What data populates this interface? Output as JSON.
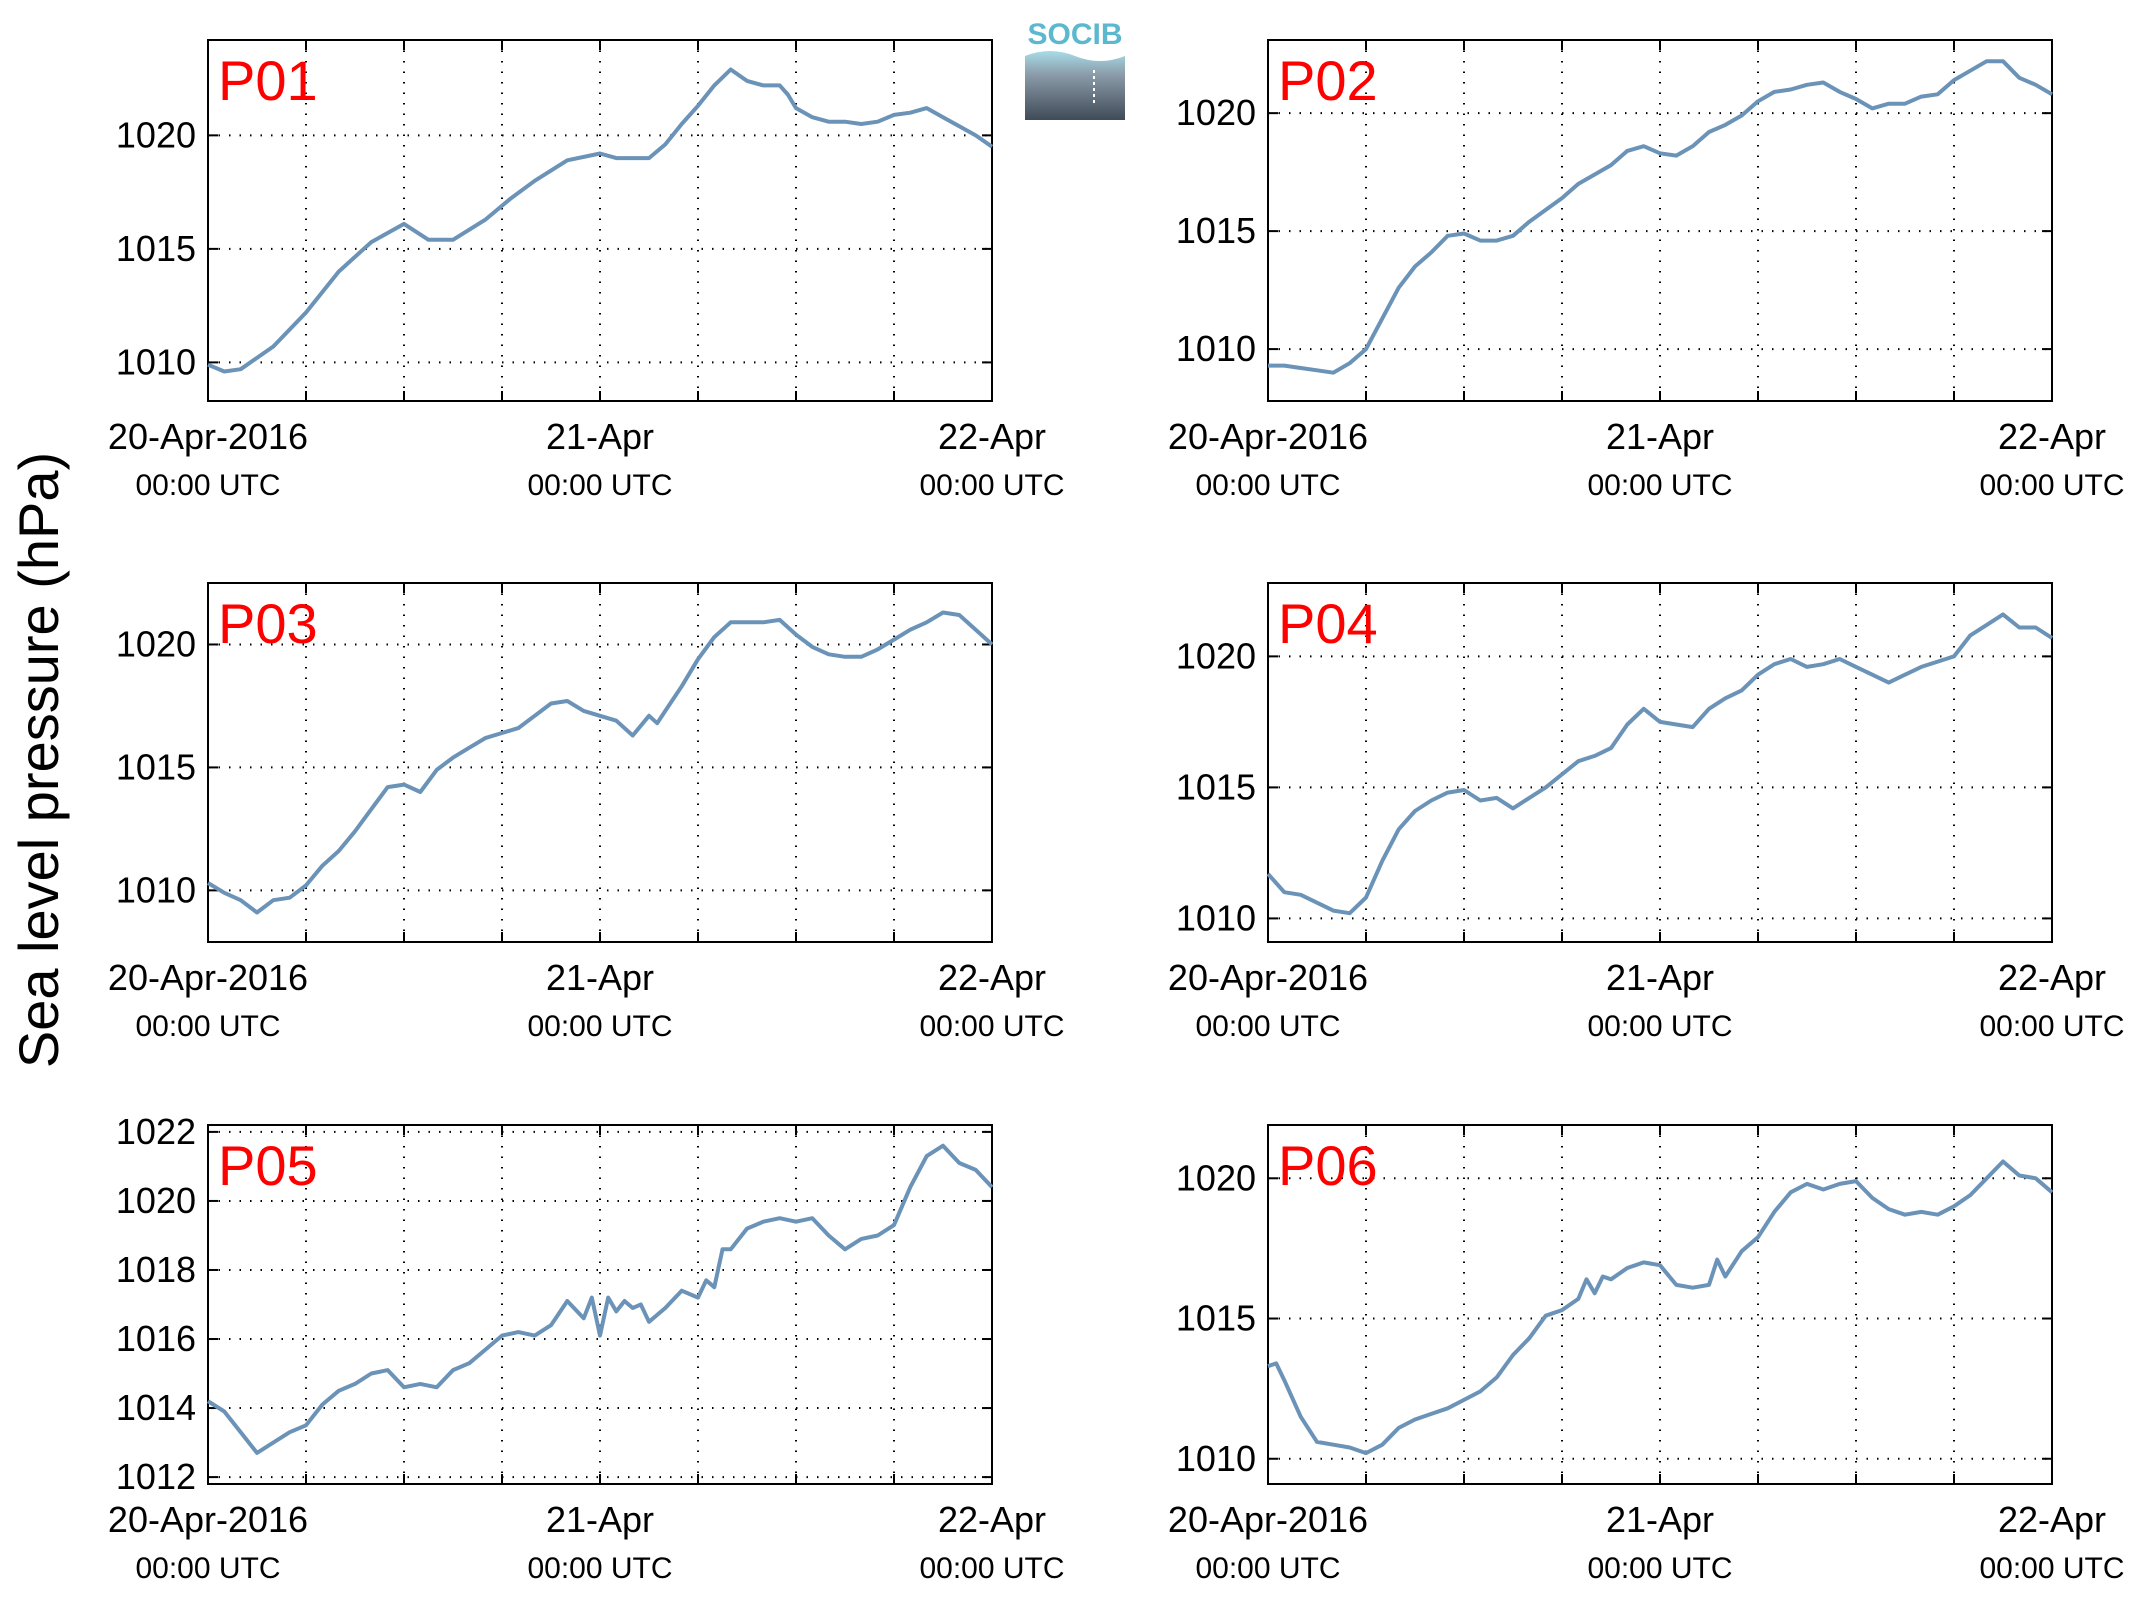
{
  "figure": {
    "ylabel": "Sea level pressure (hPa)",
    "logo_text": "SOCIB",
    "line_color": "#6b93b8",
    "label_color": "#ff0000"
  },
  "chart_data": [
    {
      "type": "line",
      "title": "P01",
      "x_unit": "hours since 20-Apr-2016 00:00 UTC",
      "xlim": [
        0,
        48
      ],
      "ylim": [
        1008.3,
        1024.2
      ],
      "yticks": [
        1010,
        1015,
        1020
      ],
      "xticks": [
        0,
        24,
        48
      ],
      "xtick_labels": [
        [
          "20-Apr-2016",
          "00:00 UTC"
        ],
        [
          "21-Apr",
          "00:00 UTC"
        ],
        [
          "22-Apr",
          "00:00 UTC"
        ]
      ],
      "grid": true,
      "x": [
        0,
        1,
        2,
        4,
        6,
        8,
        10,
        12,
        13.5,
        15,
        17,
        18.5,
        20,
        22,
        24,
        25,
        26,
        27,
        28,
        29,
        30,
        31,
        32,
        33,
        34,
        35,
        35.5,
        36,
        37,
        38,
        39,
        40,
        41,
        42,
        43,
        44,
        45,
        46,
        47,
        48
      ],
      "y": [
        1009.9,
        1009.6,
        1009.7,
        1010.7,
        1012.2,
        1014.0,
        1015.3,
        1016.1,
        1015.4,
        1015.4,
        1016.3,
        1017.2,
        1018.0,
        1018.9,
        1019.2,
        1019.0,
        1019.0,
        1019.0,
        1019.6,
        1020.5,
        1021.3,
        1022.2,
        1022.9,
        1022.4,
        1022.2,
        1022.2,
        1021.8,
        1021.2,
        1020.8,
        1020.6,
        1020.6,
        1020.5,
        1020.6,
        1020.9,
        1021.0,
        1021.2,
        1020.8,
        1020.4,
        1020.0,
        1019.5
      ]
    },
    {
      "type": "line",
      "title": "P02",
      "x_unit": "hours since 20-Apr-2016 00:00 UTC",
      "xlim": [
        0,
        48
      ],
      "ylim": [
        1007.8,
        1023.1
      ],
      "yticks": [
        1010,
        1015,
        1020
      ],
      "xticks": [
        0,
        24,
        48
      ],
      "xtick_labels": [
        [
          "20-Apr-2016",
          "00:00 UTC"
        ],
        [
          "21-Apr",
          "00:00 UTC"
        ],
        [
          "22-Apr",
          "00:00 UTC"
        ]
      ],
      "grid": true,
      "x": [
        0,
        1,
        2,
        3,
        4,
        5,
        6,
        7,
        8,
        9,
        10,
        11,
        12,
        13,
        14,
        15,
        16,
        17,
        18,
        19,
        20,
        21,
        22,
        23,
        24,
        25,
        26,
        27,
        28,
        29,
        30,
        31,
        32,
        33,
        34,
        35,
        36,
        37,
        38,
        39,
        40,
        41,
        42,
        43,
        44,
        45,
        46,
        47,
        48
      ],
      "y": [
        1009.3,
        1009.3,
        1009.2,
        1009.1,
        1009.0,
        1009.4,
        1010.0,
        1011.3,
        1012.6,
        1013.5,
        1014.1,
        1014.8,
        1014.9,
        1014.6,
        1014.6,
        1014.8,
        1015.4,
        1015.9,
        1016.4,
        1017.0,
        1017.4,
        1017.8,
        1018.4,
        1018.6,
        1018.3,
        1018.2,
        1018.6,
        1019.2,
        1019.5,
        1019.9,
        1020.5,
        1020.9,
        1021.0,
        1021.2,
        1021.3,
        1020.9,
        1020.6,
        1020.2,
        1020.4,
        1020.4,
        1020.7,
        1020.8,
        1021.4,
        1021.8,
        1022.2,
        1022.2,
        1021.5,
        1021.2,
        1020.8
      ]
    },
    {
      "type": "line",
      "title": "P03",
      "x_unit": "hours since 20-Apr-2016 00:00 UTC",
      "xlim": [
        0,
        48
      ],
      "ylim": [
        1007.9,
        1022.5
      ],
      "yticks": [
        1010,
        1015,
        1020
      ],
      "xticks": [
        0,
        24,
        48
      ],
      "xtick_labels": [
        [
          "20-Apr-2016",
          "00:00 UTC"
        ],
        [
          "21-Apr",
          "00:00 UTC"
        ],
        [
          "22-Apr",
          "00:00 UTC"
        ]
      ],
      "grid": true,
      "x": [
        0,
        1,
        2,
        3,
        4,
        5,
        6,
        7,
        8,
        9,
        10,
        11,
        12,
        13,
        14,
        15,
        16,
        17,
        18,
        19,
        20,
        21,
        22,
        23,
        24,
        25,
        26,
        27,
        27.5,
        28,
        29,
        30,
        31,
        32,
        33,
        34,
        35,
        36,
        37,
        38,
        39,
        40,
        41,
        42,
        43,
        44,
        45,
        46,
        47,
        48
      ],
      "y": [
        1010.3,
        1009.9,
        1009.6,
        1009.1,
        1009.6,
        1009.7,
        1010.2,
        1011.0,
        1011.6,
        1012.4,
        1013.3,
        1014.2,
        1014.3,
        1014.0,
        1014.9,
        1015.4,
        1015.8,
        1016.2,
        1016.4,
        1016.6,
        1017.1,
        1017.6,
        1017.7,
        1017.3,
        1017.1,
        1016.9,
        1016.3,
        1017.1,
        1016.8,
        1017.3,
        1018.3,
        1019.4,
        1020.3,
        1020.9,
        1020.9,
        1020.9,
        1021.0,
        1020.4,
        1019.9,
        1019.6,
        1019.5,
        1019.5,
        1019.8,
        1020.2,
        1020.6,
        1020.9,
        1021.3,
        1021.2,
        1020.6,
        1020.0
      ]
    },
    {
      "type": "line",
      "title": "P04",
      "x_unit": "hours since 20-Apr-2016 00:00 UTC",
      "xlim": [
        0,
        48
      ],
      "ylim": [
        1009.1,
        1022.8
      ],
      "yticks": [
        1010,
        1015,
        1020
      ],
      "xticks": [
        0,
        24,
        48
      ],
      "xtick_labels": [
        [
          "20-Apr-2016",
          "00:00 UTC"
        ],
        [
          "21-Apr",
          "00:00 UTC"
        ],
        [
          "22-Apr",
          "00:00 UTC"
        ]
      ],
      "grid": true,
      "x": [
        0,
        1,
        2,
        3,
        4,
        5,
        6,
        7,
        8,
        9,
        10,
        11,
        12,
        13,
        14,
        15,
        16,
        17,
        18,
        19,
        20,
        21,
        22,
        23,
        24,
        25,
        26,
        27,
        28,
        29,
        30,
        31,
        32,
        33,
        34,
        35,
        36,
        37,
        38,
        39,
        40,
        41,
        42,
        43,
        44,
        45,
        46,
        47,
        48
      ],
      "y": [
        1011.7,
        1011.0,
        1010.9,
        1010.6,
        1010.3,
        1010.2,
        1010.8,
        1012.2,
        1013.4,
        1014.1,
        1014.5,
        1014.8,
        1014.9,
        1014.5,
        1014.6,
        1014.2,
        1014.6,
        1015.0,
        1015.5,
        1016.0,
        1016.2,
        1016.5,
        1017.4,
        1018.0,
        1017.5,
        1017.4,
        1017.3,
        1018.0,
        1018.4,
        1018.7,
        1019.3,
        1019.7,
        1019.9,
        1019.6,
        1019.7,
        1019.9,
        1019.6,
        1019.3,
        1019.0,
        1019.3,
        1019.6,
        1019.8,
        1020.0,
        1020.8,
        1021.2,
        1021.6,
        1021.1,
        1021.1,
        1020.7
      ]
    },
    {
      "type": "line",
      "title": "P05",
      "x_unit": "hours since 20-Apr-2016 00:00 UTC",
      "xlim": [
        0,
        48
      ],
      "ylim": [
        1011.8,
        1022.2
      ],
      "yticks": [
        1012,
        1014,
        1016,
        1018,
        1020,
        1022
      ],
      "xticks": [
        0,
        24,
        48
      ],
      "xtick_labels": [
        [
          "20-Apr-2016",
          "00:00 UTC"
        ],
        [
          "21-Apr",
          "00:00 UTC"
        ],
        [
          "22-Apr",
          "00:00 UTC"
        ]
      ],
      "grid": true,
      "x": [
        0,
        1,
        2,
        3,
        4,
        5,
        6,
        7,
        8,
        9,
        10,
        11,
        12,
        13,
        14,
        15,
        16,
        17,
        18,
        19,
        20,
        21,
        22,
        23,
        23.5,
        24,
        24.5,
        25,
        25.5,
        26,
        26.5,
        27,
        28,
        29,
        30,
        30.5,
        31,
        31.5,
        32,
        33,
        34,
        35,
        36,
        37,
        38,
        39,
        40,
        41,
        42,
        43,
        44,
        45,
        46,
        47,
        48
      ],
      "y": [
        1014.2,
        1013.9,
        1013.3,
        1012.7,
        1013.0,
        1013.3,
        1013.5,
        1014.1,
        1014.5,
        1014.7,
        1015.0,
        1015.1,
        1014.6,
        1014.7,
        1014.6,
        1015.1,
        1015.3,
        1015.7,
        1016.1,
        1016.2,
        1016.1,
        1016.4,
        1017.1,
        1016.6,
        1017.2,
        1016.1,
        1017.2,
        1016.8,
        1017.1,
        1016.9,
        1017.0,
        1016.5,
        1016.9,
        1017.4,
        1017.2,
        1017.7,
        1017.5,
        1018.6,
        1018.6,
        1019.2,
        1019.4,
        1019.5,
        1019.4,
        1019.5,
        1019.0,
        1018.6,
        1018.9,
        1019.0,
        1019.3,
        1020.4,
        1021.3,
        1021.6,
        1021.1,
        1020.9,
        1020.4
      ]
    },
    {
      "type": "line",
      "title": "P06",
      "x_unit": "hours since 20-Apr-2016 00:00 UTC",
      "xlim": [
        0,
        48
      ],
      "ylim": [
        1009.1,
        1021.9
      ],
      "yticks": [
        1010,
        1015,
        1020
      ],
      "xticks": [
        0,
        24,
        48
      ],
      "xtick_labels": [
        [
          "20-Apr-2016",
          "00:00 UTC"
        ],
        [
          "21-Apr",
          "00:00 UTC"
        ],
        [
          "22-Apr",
          "00:00 UTC"
        ]
      ],
      "grid": true,
      "x": [
        0,
        0.5,
        1,
        2,
        3,
        4,
        5,
        6,
        7,
        8,
        9,
        10,
        11,
        12,
        13,
        14,
        15,
        16,
        17,
        18,
        19,
        19.5,
        20,
        20.5,
        21,
        22,
        23,
        24,
        25,
        26,
        27,
        27.5,
        28,
        29,
        30,
        31,
        32,
        33,
        34,
        35,
        36,
        37,
        38,
        39,
        40,
        41,
        42,
        43,
        44,
        45,
        46,
        47,
        48
      ],
      "y": [
        1013.3,
        1013.4,
        1012.8,
        1011.5,
        1010.6,
        1010.5,
        1010.4,
        1010.2,
        1010.5,
        1011.1,
        1011.4,
        1011.6,
        1011.8,
        1012.1,
        1012.4,
        1012.9,
        1013.7,
        1014.3,
        1015.1,
        1015.3,
        1015.7,
        1016.4,
        1015.9,
        1016.5,
        1016.4,
        1016.8,
        1017.0,
        1016.9,
        1016.2,
        1016.1,
        1016.2,
        1017.1,
        1016.5,
        1017.4,
        1017.9,
        1018.8,
        1019.5,
        1019.8,
        1019.6,
        1019.8,
        1019.9,
        1019.3,
        1018.9,
        1018.7,
        1018.8,
        1018.7,
        1019.0,
        1019.4,
        1020.0,
        1020.6,
        1020.1,
        1020.0,
        1019.5
      ]
    }
  ]
}
